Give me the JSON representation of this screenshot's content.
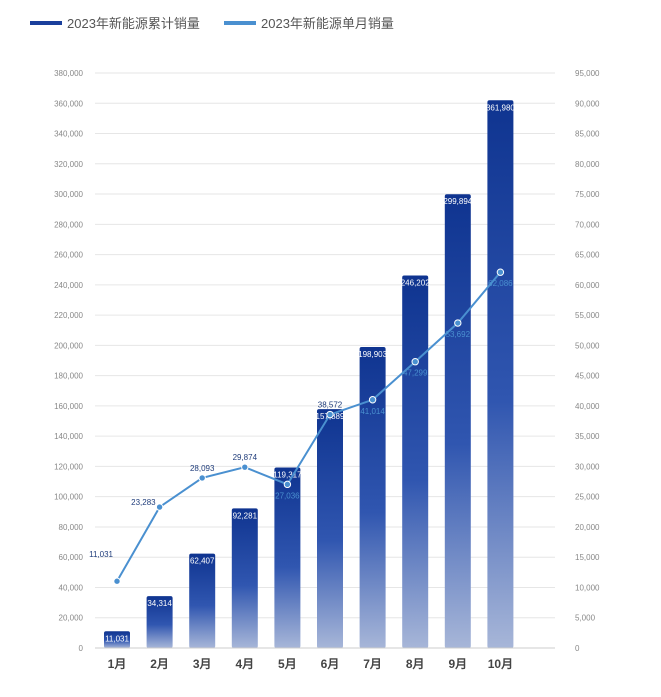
{
  "chart_data": {
    "type": "bar",
    "categories": [
      "1月",
      "2月",
      "3月",
      "4月",
      "5月",
      "6月",
      "7月",
      "8月",
      "9月",
      "10月"
    ],
    "series": [
      {
        "name": "2023年新能源累计销量",
        "type": "bar",
        "axis": "left",
        "values": [
          11031,
          34314,
          62407,
          92281,
          119317,
          157889,
          198903,
          246202,
          299894,
          361980
        ],
        "labels": [
          "11,031",
          "34,314",
          "62,407",
          "92,281",
          "119,317",
          "157,889",
          "198,903",
          "246,202",
          "299,894",
          "361,980"
        ],
        "color": "#1a3f9c"
      },
      {
        "name": "2023年新能源单月销量",
        "type": "line",
        "axis": "right",
        "values": [
          11031,
          23283,
          28093,
          29874,
          27036,
          38572,
          41014,
          47299,
          53692,
          62086
        ],
        "labels": [
          "11,031",
          "23,283",
          "28,093",
          "29,874",
          "27,036",
          "38,572",
          "41,014",
          "47,299",
          "53,692",
          "62,086"
        ],
        "color": "#4a90d0"
      }
    ],
    "y_left": {
      "range": [
        0,
        380000
      ],
      "ticks": [
        0,
        20000,
        40000,
        60000,
        80000,
        100000,
        120000,
        140000,
        160000,
        180000,
        200000,
        220000,
        240000,
        260000,
        280000,
        300000,
        320000,
        340000,
        360000,
        380000
      ],
      "tick_labels": [
        "0",
        "20,000",
        "40,000",
        "60,000",
        "80,000",
        "100,000",
        "120,000",
        "140,000",
        "160,000",
        "180,000",
        "200,000",
        "220,000",
        "240,000",
        "260,000",
        "280,000",
        "300,000",
        "320,000",
        "340,000",
        "360,000",
        "380,000"
      ]
    },
    "y_right": {
      "range": [
        0,
        95000
      ],
      "ticks": [
        0,
        5000,
        10000,
        15000,
        20000,
        25000,
        30000,
        35000,
        40000,
        45000,
        50000,
        55000,
        60000,
        65000,
        70000,
        75000,
        80000,
        85000,
        90000,
        95000
      ],
      "tick_labels": [
        "0",
        "5,000",
        "10,000",
        "15,000",
        "20,000",
        "25,000",
        "30,000",
        "35,000",
        "40,000",
        "45,000",
        "50,000",
        "55,000",
        "60,000",
        "65,000",
        "70,000",
        "75,000",
        "80,000",
        "85,000",
        "90,000",
        "95,000"
      ]
    },
    "grid": true,
    "legend_position": "top-left",
    "xlabel": "",
    "ylabel": "",
    "title": ""
  }
}
